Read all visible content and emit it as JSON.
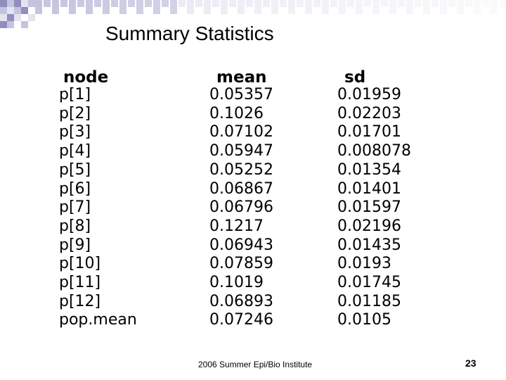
{
  "slide": {
    "title": "Summary Statistics",
    "footer": "2006 Summer Epi/Bio Institute",
    "page_number": "23"
  },
  "colors": {
    "mosaic_dark": "#8f8fbf",
    "mosaic_mid": "#c4c4df",
    "mosaic_light": "#e4e4f0"
  },
  "table": {
    "headers": [
      "node",
      "mean",
      "sd"
    ],
    "rows": [
      {
        "node": "p[1]",
        "mean": "0.05357",
        "sd": "0.01959"
      },
      {
        "node": "p[2]",
        "mean": "0.1026",
        "sd": "0.02203"
      },
      {
        "node": "p[3]",
        "mean": "0.07102",
        "sd": "0.01701"
      },
      {
        "node": "p[4]",
        "mean": "0.05947",
        "sd": "0.008078"
      },
      {
        "node": "p[5]",
        "mean": "0.05252",
        "sd": "0.01354"
      },
      {
        "node": "p[6]",
        "mean": "0.06867",
        "sd": "0.01401"
      },
      {
        "node": "p[7]",
        "mean": "0.06796",
        "sd": "0.01597"
      },
      {
        "node": "p[8]",
        "mean": "0.1217",
        "sd": "0.02196"
      },
      {
        "node": "p[9]",
        "mean": "0.06943",
        "sd": "0.01435"
      },
      {
        "node": "p[10]",
        "mean": "0.07859",
        "sd": "0.0193"
      },
      {
        "node": "p[11]",
        "mean": "0.1019",
        "sd": "0.01745"
      },
      {
        "node": "p[12]",
        "mean": "0.06893",
        "sd": "0.01185"
      },
      {
        "node": "pop.mean",
        "mean": "0.07246",
        "sd": "0.0105"
      }
    ]
  }
}
